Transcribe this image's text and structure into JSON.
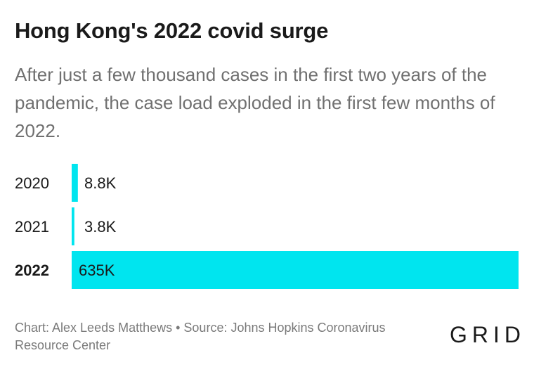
{
  "title": "Hong Kong's 2022 covid surge",
  "subtitle": "After just a few thousand cases in the first two years of the pandemic, the case load exploded in the first few months of 2022.",
  "footer": "Chart: Alex Leeds Matthews • Source: Johns Hopkins Coronavirus Resource Center",
  "brand": "GRID",
  "colors": {
    "bar": "#00e5ef",
    "text": "#1a1a1a"
  },
  "chart_data": {
    "type": "bar",
    "orientation": "horizontal",
    "categories": [
      "2020",
      "2021",
      "2022"
    ],
    "values": [
      8800,
      3800,
      635000
    ],
    "data_labels": [
      "8.8K",
      "3.8K",
      "635K"
    ],
    "highlighted_category": "2022",
    "xlim": [
      0,
      635000
    ],
    "grid": false
  }
}
